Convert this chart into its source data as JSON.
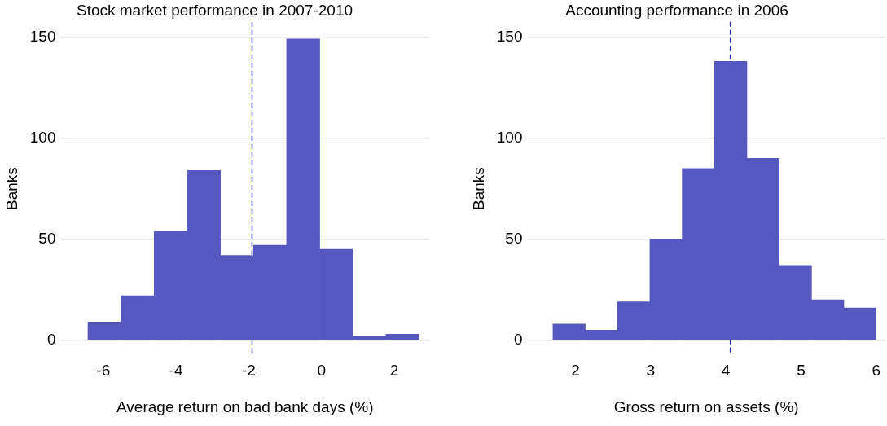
{
  "chart_data": [
    {
      "type": "histogram",
      "title": "Stock market performance in 2007-2010",
      "xlabel": "Average return on bad bank days (%)",
      "ylabel": "Banks",
      "bins": [
        -6.42,
        -5.51,
        -4.6,
        -3.69,
        -2.78,
        -1.87,
        -0.96,
        -0.05,
        0.86,
        1.77,
        2.68
      ],
      "values": [
        9,
        22,
        54,
        84,
        42,
        47,
        149,
        45,
        2,
        3
      ],
      "color": "#5658c0",
      "xlim": [
        -7.17,
        2.96
      ],
      "xticks": [
        -6,
        -4,
        -2,
        0,
        2
      ],
      "ylim": [
        -7.5,
        157.5
      ],
      "yticks": [
        0,
        50,
        100,
        150
      ],
      "grid": "y",
      "ref_lines": [
        {
          "axis": "x",
          "value": -1.91,
          "color": "#2424b0",
          "line_style": "dashed"
        }
      ]
    },
    {
      "type": "histogram",
      "title": "Accounting performance in 2006",
      "xlabel": "Gross return on assets (%)",
      "ylabel": "Banks",
      "bins": [
        1.7,
        2.13,
        2.56,
        2.99,
        3.42,
        3.85,
        4.28,
        4.71,
        5.14,
        5.57,
        6.0
      ],
      "values": [
        8,
        5,
        19,
        50,
        85,
        138,
        90,
        37,
        20,
        16
      ],
      "color": "#5658c0",
      "xlim": [
        1.36,
        6.12
      ],
      "xticks": [
        2,
        3,
        4,
        5,
        6
      ],
      "ylim": [
        -7.5,
        157.5
      ],
      "yticks": [
        0,
        50,
        100,
        150
      ],
      "grid": "y",
      "ref_lines": [
        {
          "axis": "x",
          "value": 4.06,
          "color": "#2424b0",
          "line_style": "dashed"
        }
      ]
    }
  ]
}
